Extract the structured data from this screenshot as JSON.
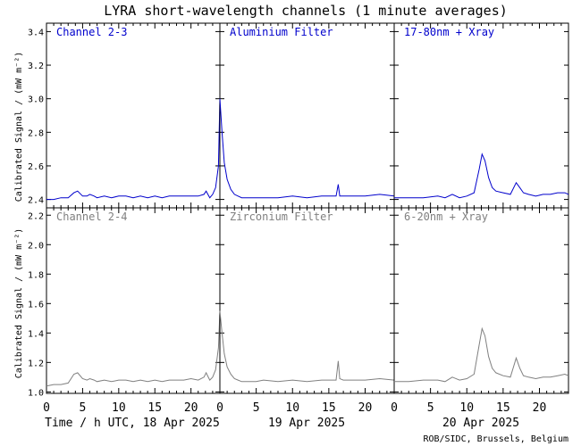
{
  "chart_data": {
    "type": "line",
    "title": "LYRA short-wavelength channels (1 minute averages)",
    "ylabel": "Calibrated Signal / (mW m⁻²)",
    "credit": "ROB/SIDC, Brussels, Belgium",
    "colors": {
      "top": "#0000cc",
      "bottom": "#808080"
    },
    "days": [
      {
        "label": "Time / h UTC, 18 Apr 2025"
      },
      {
        "label": "19 Apr 2025"
      },
      {
        "label": "20 Apr 2025"
      }
    ],
    "xtick_hours": [
      0,
      5,
      10,
      15,
      20
    ],
    "xlim": [
      0,
      24
    ],
    "rows": [
      {
        "ylim": [
          2.35,
          3.45
        ],
        "yticks": [
          "2.4",
          "2.6",
          "2.8",
          "3.0",
          "3.2",
          "3.4"
        ],
        "ytick_values": [
          2.4,
          2.6,
          2.8,
          3.0,
          3.2,
          3.4
        ],
        "series_color": "#0000cc",
        "panels": [
          {
            "name": "Channel 2-3",
            "x": [
              0,
              1,
              2,
              3,
              3.8,
              4.3,
              5,
              5.6,
              6,
              6.6,
              7,
              8,
              9,
              10,
              11,
              12,
              13,
              14,
              15,
              16,
              17,
              18,
              19,
              20,
              21,
              21.8,
              22.1,
              22.6,
              23,
              23.4,
              23.8,
              24
            ],
            "y": [
              2.4,
              2.4,
              2.41,
              2.41,
              2.44,
              2.45,
              2.42,
              2.42,
              2.43,
              2.42,
              2.41,
              2.42,
              2.41,
              2.42,
              2.42,
              2.41,
              2.42,
              2.41,
              2.42,
              2.41,
              2.42,
              2.42,
              2.42,
              2.42,
              2.42,
              2.43,
              2.45,
              2.41,
              2.43,
              2.47,
              2.6,
              3.0
            ]
          },
          {
            "name": "Aluminium Filter",
            "x": [
              0,
              0.3,
              0.6,
              1,
              1.5,
              2,
              2.5,
              3,
              4,
              5,
              6,
              8,
              10,
              12,
              14,
              16,
              16.3,
              16.5,
              17,
              18,
              20,
              22,
              24
            ],
            "y": [
              3.0,
              2.8,
              2.62,
              2.52,
              2.46,
              2.43,
              2.42,
              2.41,
              2.41,
              2.41,
              2.41,
              2.41,
              2.42,
              2.41,
              2.42,
              2.42,
              2.49,
              2.42,
              2.42,
              2.42,
              2.42,
              2.43,
              2.42
            ]
          },
          {
            "name": "17-80nm + Xray",
            "x": [
              0,
              2,
              4,
              6,
              7,
              8,
              9,
              10,
              11,
              11.7,
              12.1,
              12.5,
              13,
              13.5,
              14,
              15,
              16,
              16.8,
              17.3,
              17.8,
              18.5,
              19.5,
              20.5,
              21.5,
              22.5,
              23.5,
              24
            ],
            "y": [
              2.41,
              2.41,
              2.41,
              2.42,
              2.41,
              2.43,
              2.41,
              2.42,
              2.44,
              2.58,
              2.67,
              2.63,
              2.53,
              2.47,
              2.45,
              2.44,
              2.43,
              2.5,
              2.47,
              2.44,
              2.43,
              2.42,
              2.43,
              2.43,
              2.44,
              2.44,
              2.43
            ]
          }
        ]
      },
      {
        "ylim": [
          0.99,
          2.25
        ],
        "yticks": [
          "1.0",
          "1.2",
          "1.4",
          "1.6",
          "1.8",
          "2.0",
          "2.2"
        ],
        "ytick_values": [
          1.0,
          1.2,
          1.4,
          1.6,
          1.8,
          2.0,
          2.2
        ],
        "series_color": "#808080",
        "panels": [
          {
            "name": "Channel 2-4",
            "x": [
              0,
              1,
              2,
              3,
              3.8,
              4.3,
              5,
              5.6,
              6,
              6.6,
              7,
              8,
              9,
              10,
              11,
              12,
              13,
              14,
              15,
              16,
              17,
              18,
              19,
              20,
              21,
              21.8,
              22.1,
              22.6,
              23,
              23.4,
              23.8,
              24
            ],
            "y": [
              1.04,
              1.05,
              1.05,
              1.06,
              1.12,
              1.13,
              1.09,
              1.08,
              1.09,
              1.08,
              1.07,
              1.08,
              1.07,
              1.08,
              1.08,
              1.07,
              1.08,
              1.07,
              1.08,
              1.07,
              1.08,
              1.08,
              1.08,
              1.09,
              1.08,
              1.1,
              1.13,
              1.08,
              1.1,
              1.15,
              1.3,
              1.55
            ]
          },
          {
            "name": "Zirconium Filter",
            "x": [
              0,
              0.3,
              0.6,
              1,
              1.5,
              2,
              2.5,
              3,
              4,
              5,
              6,
              8,
              10,
              12,
              14,
              16,
              16.3,
              16.5,
              17,
              18,
              20,
              22,
              24
            ],
            "y": [
              1.55,
              1.4,
              1.26,
              1.17,
              1.12,
              1.09,
              1.08,
              1.07,
              1.07,
              1.07,
              1.08,
              1.07,
              1.08,
              1.07,
              1.08,
              1.08,
              1.21,
              1.09,
              1.08,
              1.08,
              1.08,
              1.09,
              1.08
            ]
          },
          {
            "name": "6-20nm + Xray",
            "x": [
              0,
              2,
              4,
              6,
              7,
              8,
              9,
              10,
              11,
              11.7,
              12.1,
              12.5,
              13,
              13.5,
              14,
              15,
              16,
              16.8,
              17.3,
              17.8,
              18.5,
              19.5,
              20.5,
              21.5,
              22.5,
              23.5,
              24
            ],
            "y": [
              1.07,
              1.07,
              1.08,
              1.08,
              1.07,
              1.1,
              1.08,
              1.09,
              1.12,
              1.32,
              1.43,
              1.38,
              1.24,
              1.16,
              1.13,
              1.11,
              1.1,
              1.23,
              1.16,
              1.11,
              1.1,
              1.09,
              1.1,
              1.1,
              1.11,
              1.12,
              1.11
            ]
          }
        ]
      }
    ]
  }
}
